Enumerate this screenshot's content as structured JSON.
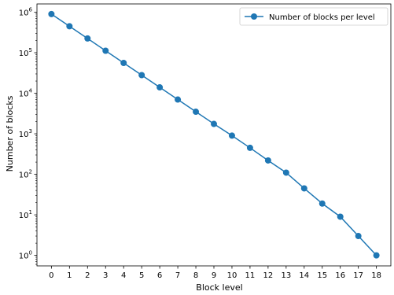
{
  "chart_data": {
    "type": "line",
    "title": "",
    "xlabel": "Block level",
    "ylabel": "Number of blocks",
    "yscale": "log",
    "xlim": [
      -0.8,
      18.8
    ],
    "ylim": [
      0.55,
      1600000
    ],
    "x_ticks": [
      0,
      1,
      2,
      3,
      4,
      5,
      6,
      7,
      8,
      9,
      10,
      11,
      12,
      13,
      14,
      15,
      16,
      17,
      18
    ],
    "y_ticks": [
      {
        "value": 1,
        "base": "10",
        "exp": "0"
      },
      {
        "value": 10,
        "base": "10",
        "exp": "1"
      },
      {
        "value": 100,
        "base": "10",
        "exp": "2"
      },
      {
        "value": 1000,
        "base": "10",
        "exp": "3"
      },
      {
        "value": 10000,
        "base": "10",
        "exp": "4"
      },
      {
        "value": 100000,
        "base": "10",
        "exp": "5"
      },
      {
        "value": 1000000,
        "base": "10",
        "exp": "6"
      }
    ],
    "grid": false,
    "legend_position": "top-right",
    "series": [
      {
        "name": "Number of blocks per level",
        "color": "#1f77b4",
        "marker": "circle",
        "x": [
          0,
          1,
          2,
          3,
          4,
          5,
          6,
          7,
          8,
          9,
          10,
          11,
          12,
          13,
          14,
          15,
          16,
          17,
          18
        ],
        "y": [
          900000,
          450000,
          225000,
          112000,
          56000,
          28000,
          14000,
          7000,
          3500,
          1750,
          900,
          450,
          220,
          110,
          45,
          19,
          9,
          3,
          1
        ]
      }
    ]
  }
}
